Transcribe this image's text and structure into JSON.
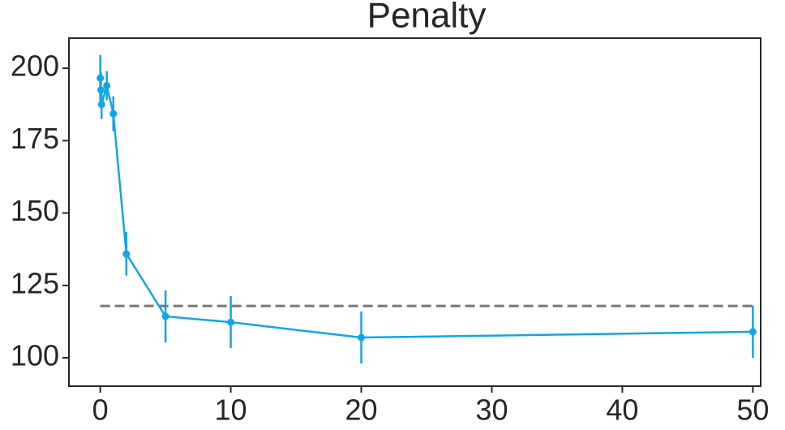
{
  "chart_data": {
    "type": "line",
    "title": "Penalty",
    "x": [
      0,
      0.05,
      0.1,
      0.5,
      1,
      2,
      5,
      10,
      20,
      50
    ],
    "series": [
      {
        "color": "#12a4e6",
        "values": [
          196.6,
          192.5,
          187.5,
          194,
          184.3,
          135.9,
          114.3,
          112.3,
          107,
          109
        ],
        "errors": [
          8,
          6,
          5,
          5,
          6,
          7.5,
          9,
          9,
          9,
          9
        ]
      }
    ],
    "hline": {
      "y": 117.9,
      "xmin": 0,
      "xmax": 50,
      "color": "#777777"
    },
    "xlim": [
      -2.4,
      50.6
    ],
    "xticks": [
      0,
      10,
      20,
      30,
      40,
      50
    ],
    "ylim": [
      90.2,
      210.4
    ],
    "yticks": [
      100,
      125,
      150,
      175,
      200
    ],
    "grid": false
  }
}
